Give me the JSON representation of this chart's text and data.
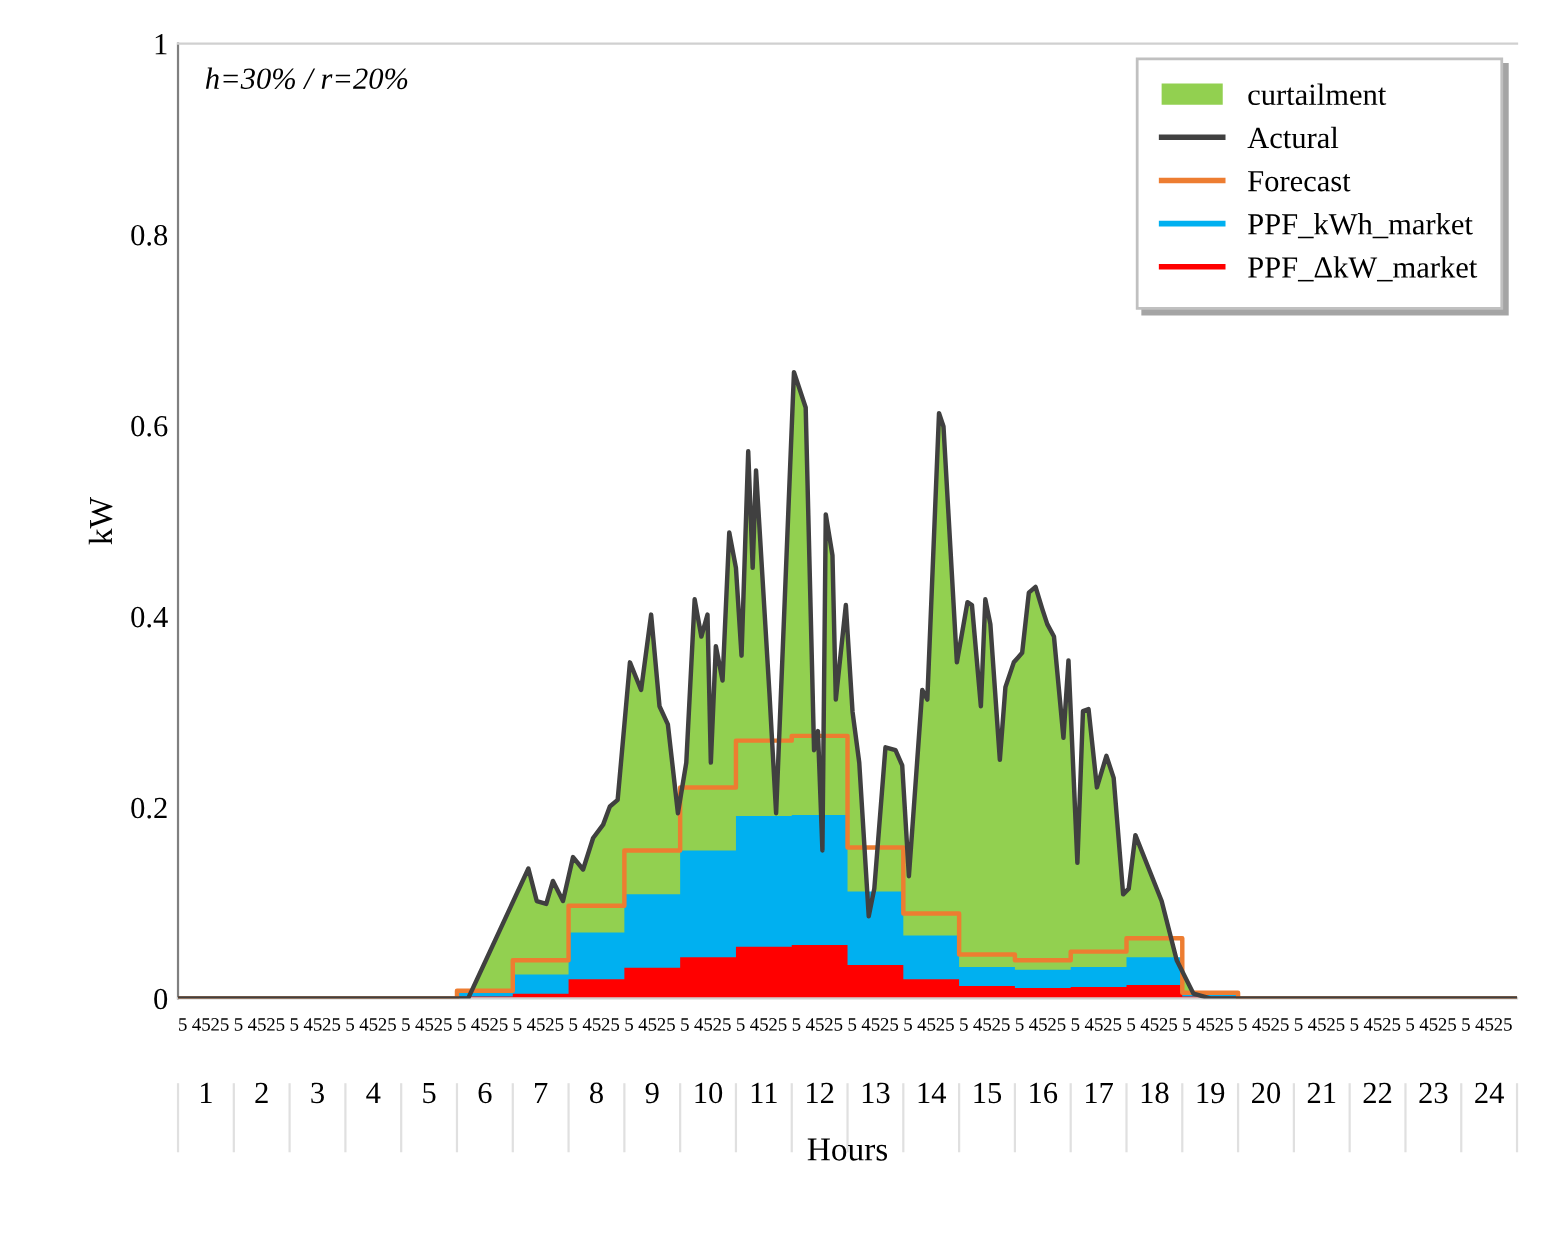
{
  "chart_data": {
    "type": "area",
    "ylabel": "kW",
    "xlabel": "Hours",
    "legend": "top right",
    "grid": false,
    "xlim": [
      0.5,
      24.5
    ],
    "ylim": [
      0,
      1
    ],
    "yticks": [
      0,
      0.2,
      0.4,
      0.6,
      0.8,
      1
    ],
    "xticks": [
      1,
      2,
      3,
      4,
      5,
      6,
      7,
      8,
      9,
      10,
      11,
      12,
      13,
      14,
      15,
      16,
      17,
      18,
      19,
      20,
      21,
      22,
      23,
      24
    ],
    "annotations": [
      "h=30% / r=20%",
      "5",
      "45",
      "25",
      "5",
      "45",
      "25",
      "5",
      "45",
      "25",
      "5",
      "45",
      "25",
      "5",
      "45",
      "25",
      "5",
      "45",
      "25",
      "5",
      "45",
      "25",
      "5",
      "45",
      "25",
      "5",
      "45",
      "25",
      "5",
      "45",
      "25",
      "5",
      "45",
      "25",
      "5",
      "45",
      "25",
      "5",
      "45",
      "25",
      "5",
      "45",
      "25",
      "5",
      "45",
      "25",
      "5",
      "45",
      "25",
      "5",
      "45",
      "25",
      "5",
      "45",
      "25",
      "5",
      "45",
      "25",
      "5",
      "45",
      "25",
      "5",
      "45",
      "25",
      "5",
      "45",
      "25",
      "5",
      "45",
      "25",
      "5",
      "45",
      "25"
    ],
    "series": [
      {
        "name": "curtailment",
        "color": "#92d050",
        "x": [
          0.5,
          5.7,
          6.78,
          6.93,
          7.1,
          7.22,
          7.4,
          7.58,
          7.76,
          7.94,
          8.12,
          8.24,
          8.38,
          8.6,
          8.8,
          8.98,
          9.13,
          9.28,
          9.46,
          9.61,
          9.76,
          9.88,
          9.99,
          10.05,
          10.14,
          10.26,
          10.38,
          10.5,
          10.6,
          10.72,
          10.8,
          10.86,
          11.1,
          11.22,
          11.54,
          11.75,
          11.9,
          11.97,
          12.05,
          12.11,
          12.23,
          12.29,
          12.47,
          12.59,
          12.71,
          12.88,
          12.98,
          13.18,
          13.36,
          13.48,
          13.6,
          13.84,
          13.93,
          14.14,
          14.22,
          14.46,
          14.65,
          14.73,
          14.89,
          14.97,
          15.06,
          15.23,
          15.33,
          15.48,
          15.63,
          15.75,
          15.87,
          15.99,
          16.08,
          16.2,
          16.37,
          16.46,
          16.62,
          16.72,
          16.82,
          16.97,
          17.14,
          17.27,
          17.44,
          17.54,
          17.66,
          18.13,
          18.4,
          18.7,
          19.0,
          24.5
        ],
        "values": [
          0,
          0,
          0.136,
          0.102,
          0.099,
          0.123,
          0.102,
          0.148,
          0.135,
          0.168,
          0.182,
          0.201,
          0.208,
          0.352,
          0.323,
          0.402,
          0.306,
          0.287,
          0.194,
          0.247,
          0.418,
          0.379,
          0.402,
          0.247,
          0.369,
          0.333,
          0.488,
          0.451,
          0.359,
          0.573,
          0.451,
          0.553,
          0.32,
          0.194,
          0.656,
          0.619,
          0.26,
          0.28,
          0.155,
          0.507,
          0.464,
          0.313,
          0.412,
          0.3,
          0.247,
          0.086,
          0.115,
          0.263,
          0.26,
          0.244,
          0.128,
          0.323,
          0.313,
          0.613,
          0.599,
          0.352,
          0.415,
          0.412,
          0.306,
          0.418,
          0.392,
          0.25,
          0.326,
          0.352,
          0.362,
          0.425,
          0.431,
          0.408,
          0.392,
          0.379,
          0.273,
          0.354,
          0.142,
          0.301,
          0.303,
          0.221,
          0.254,
          0.231,
          0.109,
          0.115,
          0.171,
          0.102,
          0.04,
          0.005,
          0,
          0
        ]
      },
      {
        "name": "Actural",
        "type": "line",
        "color": "#404040"
      },
      {
        "name": "Forecast",
        "type": "step",
        "color": "#ed7d31",
        "x": [
          0.5,
          5.5,
          6.5,
          7.5,
          8.5,
          9.5,
          10.5,
          11.5,
          12.5,
          13.5,
          14.5,
          15.5,
          16.5,
          17.5,
          18.5,
          19.5,
          24.5
        ],
        "values": [
          0,
          0.008,
          0.04,
          0.097,
          0.155,
          0.221,
          0.27,
          0.275,
          0.158,
          0.089,
          0.046,
          0.04,
          0.049,
          0.063,
          0.006,
          0,
          0
        ]
      },
      {
        "name": "PPF_kWh_market",
        "type": "area",
        "color": "#00b0f0",
        "x": [
          0.5,
          5.5,
          5.5,
          6.5,
          6.5,
          7.5,
          7.5,
          8.5,
          8.5,
          9.5,
          9.5,
          10.5,
          10.5,
          11.5,
          11.5,
          12.5,
          12.5,
          13.5,
          13.5,
          14.5,
          14.5,
          15.5,
          15.5,
          16.5,
          16.5,
          17.5,
          17.5,
          18.5,
          18.5,
          19.5,
          19.5,
          24.5
        ],
        "values": [
          0,
          0,
          0.006,
          0.006,
          0.025,
          0.025,
          0.069,
          0.069,
          0.109,
          0.109,
          0.155,
          0.155,
          0.191,
          0.191,
          0.192,
          0.192,
          0.112,
          0.112,
          0.066,
          0.066,
          0.033,
          0.033,
          0.03,
          0.03,
          0.033,
          0.033,
          0.043,
          0.043,
          0.004,
          0.004,
          0,
          0
        ]
      },
      {
        "name": "PPF_ΔkW_market",
        "type": "area",
        "color": "#ff0000",
        "x": [
          0.5,
          5.5,
          5.5,
          6.5,
          6.5,
          7.5,
          7.5,
          8.5,
          8.5,
          9.5,
          9.5,
          10.5,
          10.5,
          11.5,
          11.5,
          12.5,
          12.5,
          13.5,
          13.5,
          14.5,
          14.5,
          15.5,
          15.5,
          16.5,
          16.5,
          17.5,
          17.5,
          18.5,
          18.5,
          19.5,
          19.5,
          24.5
        ],
        "values": [
          0,
          0,
          0.002,
          0.002,
          0.005,
          0.005,
          0.02,
          0.02,
          0.032,
          0.032,
          0.043,
          0.043,
          0.054,
          0.054,
          0.056,
          0.056,
          0.035,
          0.035,
          0.02,
          0.02,
          0.013,
          0.013,
          0.011,
          0.011,
          0.012,
          0.012,
          0.014,
          0.014,
          0.002,
          0.002,
          0,
          0
        ]
      }
    ]
  }
}
